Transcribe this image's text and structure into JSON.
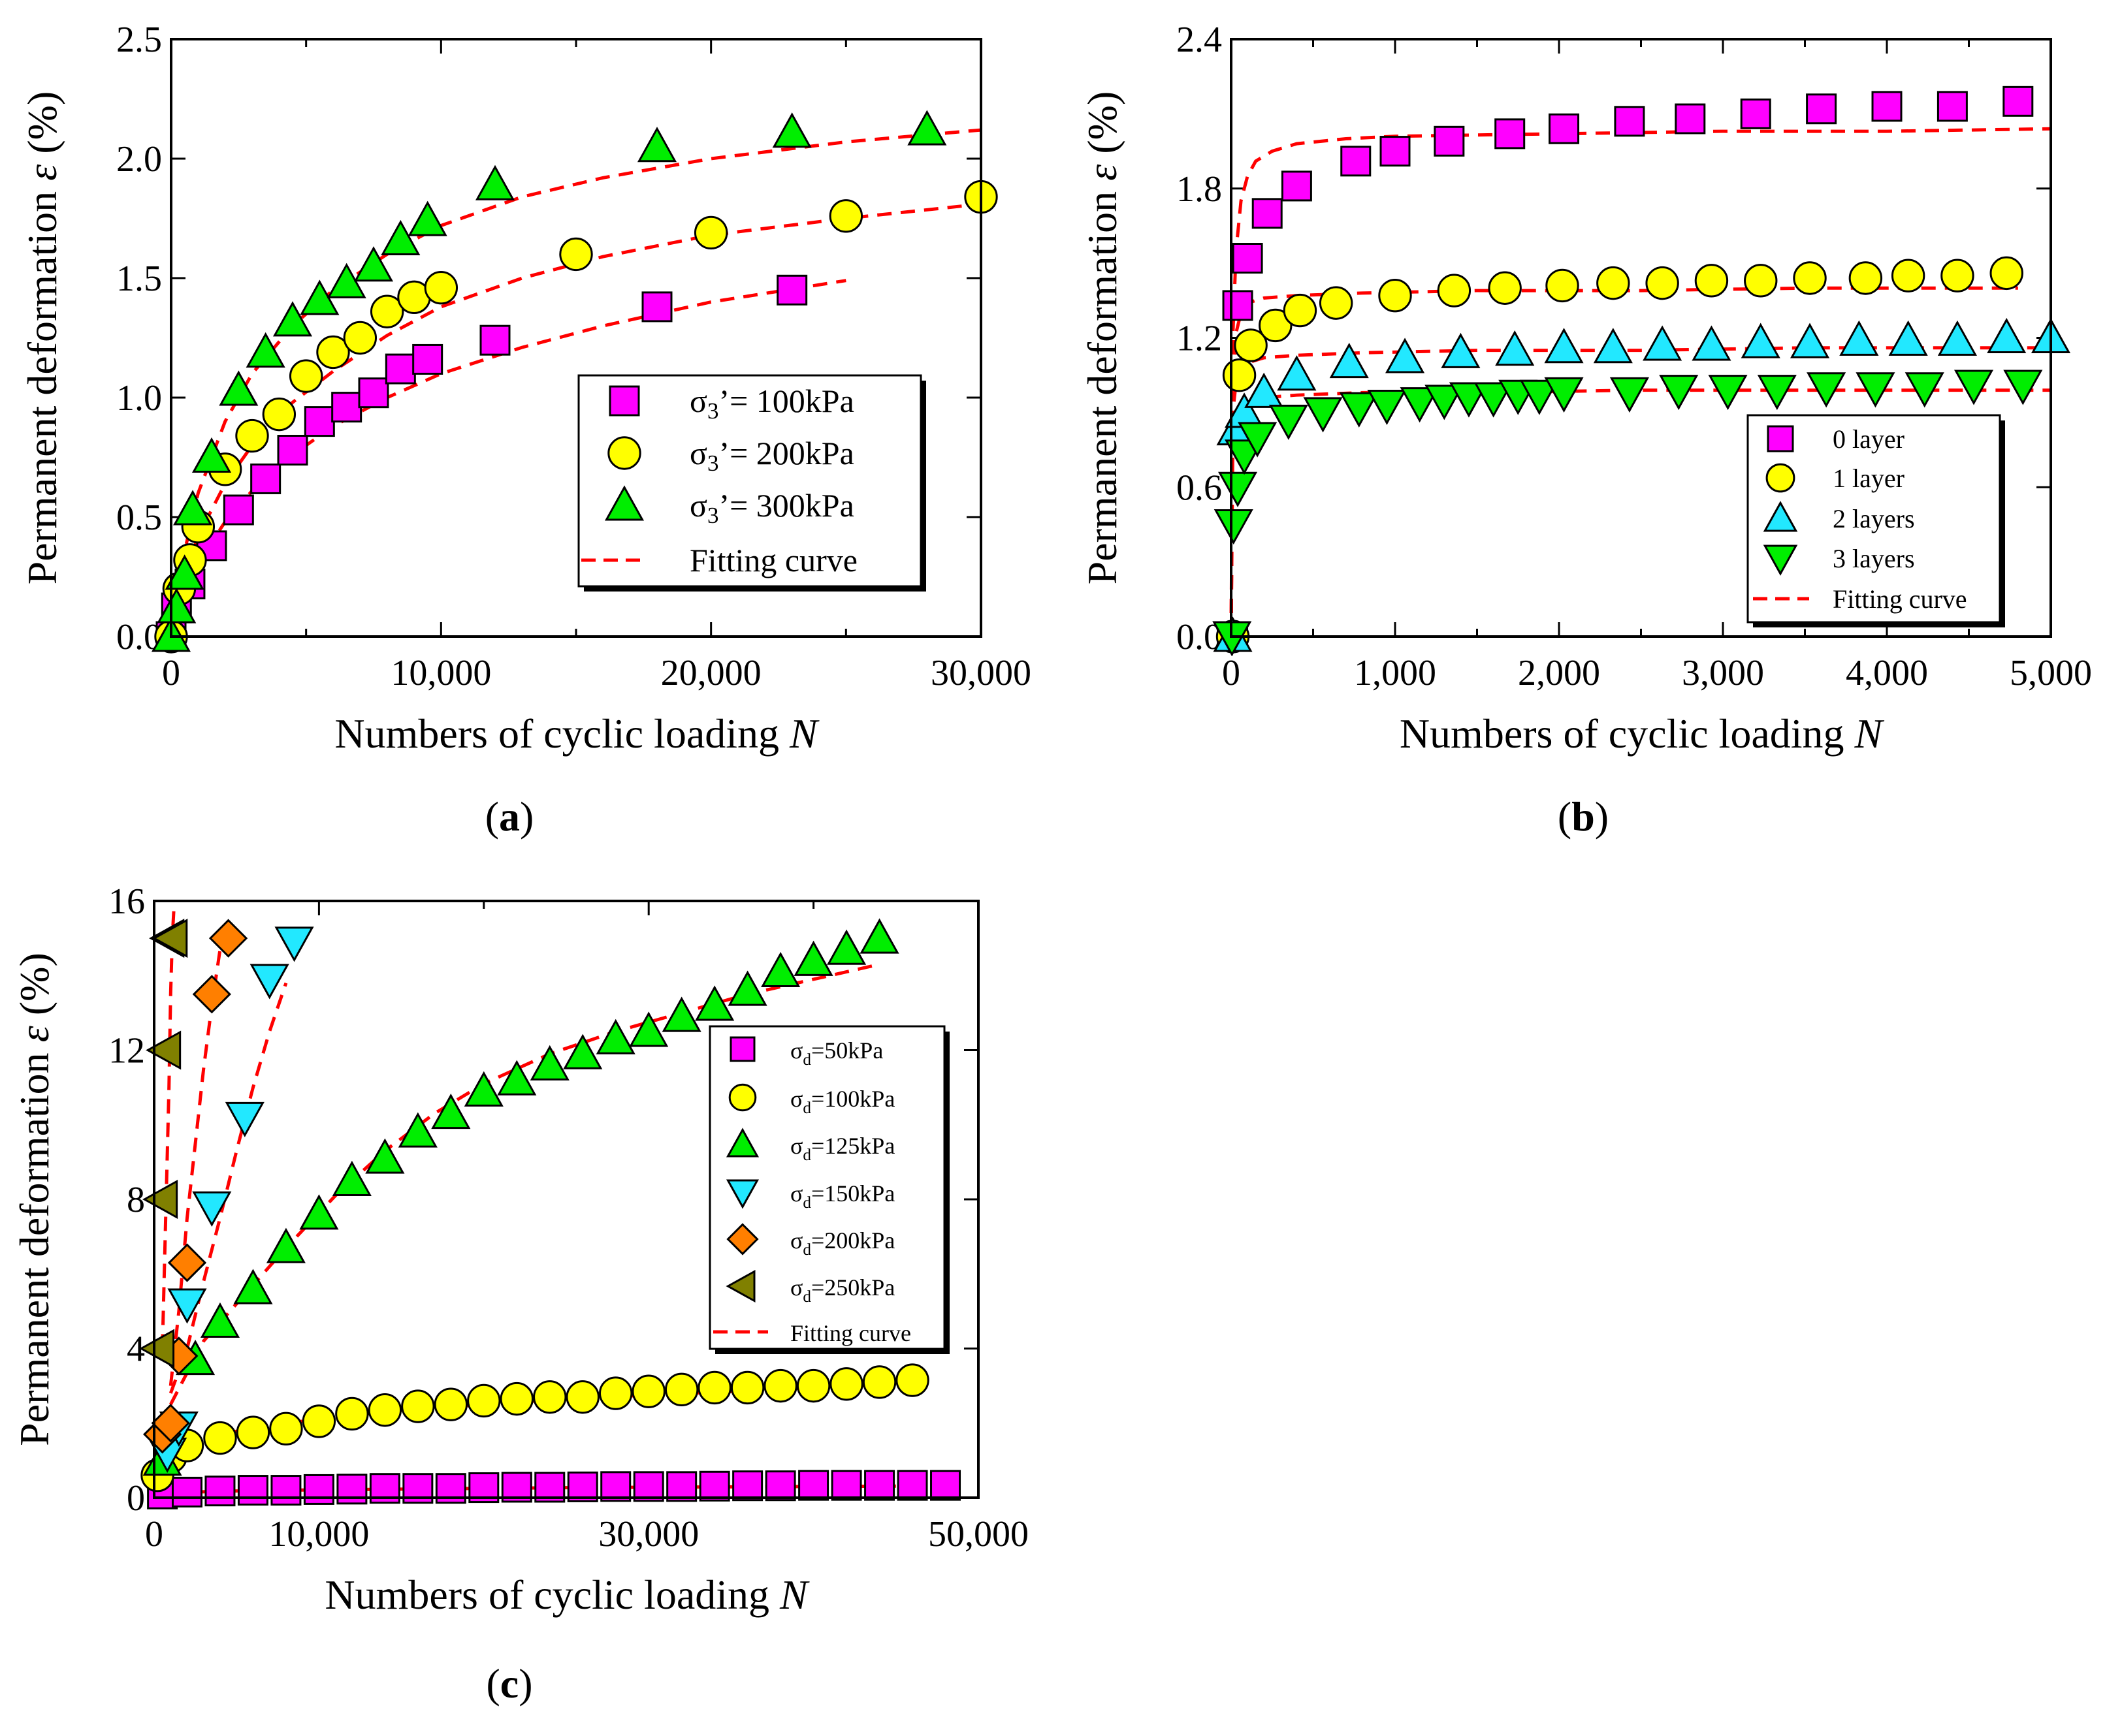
{
  "colors": {
    "magenta": "#ff00ff",
    "yellow": "#ffff00",
    "green": "#00ee00",
    "cyan": "#22e8ff",
    "orange": "#ff7f00",
    "olive": "#808000",
    "fit": "#ff0000"
  },
  "panels": [
    {
      "label": "a",
      "xlabel": "Numbers of cyclic loading",
      "xlabel_italic": "N",
      "ylabel": "Permanent deformation",
      "ylabel_italic": "ε",
      "ylabel_unit": "(%)",
      "xticks": [
        "0",
        "10,000",
        "20,000",
        "30,000"
      ],
      "yticks": [
        "0.0",
        "0.5",
        "1.0",
        "1.5",
        "2.0",
        "2.5"
      ]
    },
    {
      "label": "b",
      "xlabel": "Numbers of cyclic loading",
      "xlabel_italic": "N",
      "ylabel": "Permanent deformation",
      "ylabel_italic": "ε",
      "ylabel_unit": "(%)",
      "xticks": [
        "0",
        "1,000",
        "2,000",
        "3,000",
        "4,000",
        "5,000"
      ],
      "yticks": [
        "0.0",
        "0.6",
        "1.2",
        "1.8",
        "2.4"
      ]
    },
    {
      "label": "c",
      "xlabel": "Numbers of cyclic loading",
      "xlabel_italic": "N",
      "ylabel": "Permanent deformation",
      "ylabel_italic": "ε",
      "ylabel_unit": "(%)",
      "xticks": [
        "0",
        "10,000",
        "30,000",
        "50,000"
      ],
      "yticks": [
        "0",
        "4",
        "8",
        "12",
        "16"
      ]
    }
  ],
  "chart_data": [
    {
      "type": "scatter",
      "panel": "a",
      "xlim": [
        0,
        30000
      ],
      "ylim": [
        0,
        2.5
      ],
      "xlabel": "Numbers of cyclic loading N",
      "ylabel": "Permanent deformation ε (%)",
      "legend_position": "lower-right",
      "series": [
        {
          "name": "σ3’= 100kPa",
          "marker": "square",
          "color": "#ff00ff",
          "x": [
            0,
            200,
            700,
            1500,
            2500,
            3500,
            4500,
            5500,
            6500,
            7500,
            8500,
            9500,
            12000,
            18000,
            23000
          ],
          "y": [
            0.0,
            0.12,
            0.22,
            0.38,
            0.53,
            0.66,
            0.78,
            0.9,
            0.96,
            1.02,
            1.12,
            1.16,
            1.24,
            1.38,
            1.45
          ]
        },
        {
          "name": "σ3’= 200kPa",
          "marker": "circle",
          "color": "#ffff00",
          "x": [
            0,
            300,
            700,
            1000,
            2000,
            3000,
            4000,
            5000,
            6000,
            7000,
            8000,
            9000,
            10000,
            15000,
            20000,
            25000,
            30000
          ],
          "y": [
            0.0,
            0.2,
            0.32,
            0.46,
            0.7,
            0.84,
            0.93,
            1.09,
            1.19,
            1.25,
            1.36,
            1.42,
            1.46,
            1.6,
            1.69,
            1.76,
            1.84
          ]
        },
        {
          "name": "σ3’= 300kPa",
          "marker": "triangle-up",
          "color": "#00ee00",
          "x": [
            0,
            200,
            500,
            800,
            1500,
            2500,
            3500,
            4500,
            5500,
            6500,
            7500,
            8500,
            9500,
            12000,
            18000,
            23000,
            28000
          ],
          "y": [
            0.0,
            0.12,
            0.26,
            0.53,
            0.75,
            1.03,
            1.19,
            1.32,
            1.41,
            1.48,
            1.55,
            1.66,
            1.74,
            1.89,
            2.05,
            2.11,
            2.12
          ]
        },
        {
          "name": "Fitting curve",
          "style": "dashed",
          "color": "#ff0000",
          "x": [
            0,
            300,
            1000,
            2000,
            3000,
            4500,
            6000,
            8000,
            10000,
            13000,
            16000,
            20000,
            25000
          ],
          "y": [
            0.0,
            0.14,
            0.31,
            0.48,
            0.61,
            0.76,
            0.88,
            1.0,
            1.1,
            1.21,
            1.3,
            1.4,
            1.49
          ]
        },
        {
          "name": "",
          "style": "dashed",
          "color": "#ff0000",
          "x": [
            0,
            300,
            1000,
            2000,
            3000,
            4500,
            6000,
            8000,
            10000,
            13000,
            16000,
            20000,
            25000,
            30000
          ],
          "y": [
            0.0,
            0.18,
            0.42,
            0.64,
            0.8,
            0.98,
            1.11,
            1.26,
            1.38,
            1.5,
            1.59,
            1.68,
            1.75,
            1.81
          ]
        },
        {
          "name": "",
          "style": "dashed",
          "color": "#ff0000",
          "x": [
            0,
            300,
            1000,
            2000,
            3000,
            4500,
            6000,
            8000,
            10000,
            13000,
            16000,
            20000,
            25000,
            30000
          ],
          "y": [
            0.0,
            0.26,
            0.6,
            0.9,
            1.1,
            1.3,
            1.45,
            1.6,
            1.72,
            1.84,
            1.92,
            2.0,
            2.07,
            2.12
          ]
        }
      ]
    },
    {
      "type": "scatter",
      "panel": "b",
      "xlim": [
        0,
        5000
      ],
      "ylim": [
        0,
        2.4
      ],
      "xlabel": "Numbers of cyclic loading N",
      "ylabel": "Permanent deformation ε (%)",
      "legend_position": "lower-right",
      "series": [
        {
          "name": "0 layer",
          "marker": "square",
          "color": "#ff00ff",
          "x": [
            10,
            40,
            100,
            220,
            400,
            760,
            1000,
            1330,
            1700,
            2030,
            2430,
            2800,
            3200,
            3600,
            4000,
            4400,
            4800
          ],
          "y": [
            0.0,
            1.33,
            1.52,
            1.7,
            1.81,
            1.91,
            1.95,
            1.99,
            2.02,
            2.04,
            2.07,
            2.08,
            2.1,
            2.12,
            2.13,
            2.13,
            2.15
          ]
        },
        {
          "name": "1 layer",
          "marker": "circle",
          "color": "#ffff00",
          "x": [
            10,
            50,
            120,
            270,
            420,
            640,
            1000,
            1360,
            1670,
            2020,
            2330,
            2630,
            2930,
            3230,
            3530,
            3870,
            4130,
            4430,
            4730
          ],
          "y": [
            0.0,
            1.05,
            1.17,
            1.25,
            1.31,
            1.34,
            1.37,
            1.39,
            1.4,
            1.41,
            1.42,
            1.42,
            1.43,
            1.43,
            1.44,
            1.44,
            1.45,
            1.45,
            1.46
          ]
        },
        {
          "name": "2 layers",
          "marker": "triangle-up",
          "color": "#22e8ff",
          "x": [
            10,
            30,
            80,
            200,
            400,
            720,
            1060,
            1400,
            1730,
            2030,
            2330,
            2630,
            2930,
            3230,
            3530,
            3830,
            4130,
            4430,
            4730,
            5000
          ],
          "y": [
            0.0,
            0.83,
            0.9,
            0.98,
            1.05,
            1.1,
            1.12,
            1.14,
            1.15,
            1.16,
            1.16,
            1.17,
            1.17,
            1.18,
            1.18,
            1.19,
            1.19,
            1.19,
            1.2,
            1.2
          ]
        },
        {
          "name": "3 layers",
          "marker": "triangle-down",
          "color": "#00ee00",
          "x": [
            5,
            15,
            40,
            80,
            160,
            350,
            560,
            780,
            950,
            1150,
            1300,
            1450,
            1600,
            1750,
            1880,
            2030,
            2430,
            2730,
            3030,
            3330,
            3630,
            3930,
            4230,
            4530,
            4830
          ],
          "y": [
            0.0,
            0.45,
            0.6,
            0.73,
            0.8,
            0.87,
            0.9,
            0.92,
            0.93,
            0.94,
            0.95,
            0.96,
            0.96,
            0.97,
            0.97,
            0.98,
            0.98,
            0.99,
            0.99,
            0.99,
            1.0,
            1.0,
            1.0,
            1.01,
            1.01
          ]
        },
        {
          "name": "Fitting curve",
          "style": "dashed",
          "color": "#ff0000",
          "x": [
            0,
            10,
            30,
            60,
            100,
            150,
            250,
            400,
            700,
            1000,
            2000,
            3000,
            4000,
            5000
          ],
          "y": [
            0.0,
            1.2,
            1.55,
            1.75,
            1.85,
            1.91,
            1.95,
            1.98,
            2.0,
            2.01,
            2.02,
            2.03,
            2.03,
            2.04
          ]
        },
        {
          "name": "",
          "style": "dashed",
          "color": "#ff0000",
          "x": [
            0,
            10,
            30,
            60,
            100,
            200,
            400,
            800,
            1500,
            2500,
            3500,
            4800
          ],
          "y": [
            0.0,
            1.0,
            1.22,
            1.3,
            1.34,
            1.36,
            1.37,
            1.38,
            1.39,
            1.39,
            1.4,
            1.4
          ]
        },
        {
          "name": "",
          "style": "dashed",
          "color": "#ff0000",
          "x": [
            0,
            10,
            30,
            60,
            100,
            200,
            400,
            800,
            1500,
            2500,
            3500,
            5000
          ],
          "y": [
            0.0,
            0.9,
            1.02,
            1.07,
            1.1,
            1.12,
            1.13,
            1.14,
            1.15,
            1.15,
            1.16,
            1.16
          ]
        },
        {
          "name": "",
          "style": "dashed",
          "color": "#ff0000",
          "x": [
            0,
            10,
            30,
            60,
            100,
            200,
            400,
            800,
            1500,
            2500,
            3500,
            5000
          ],
          "y": [
            0.0,
            0.75,
            0.88,
            0.92,
            0.94,
            0.96,
            0.97,
            0.98,
            0.98,
            0.99,
            0.99,
            0.99
          ]
        }
      ]
    },
    {
      "type": "scatter",
      "panel": "c",
      "xlim": [
        0,
        50000
      ],
      "ylim": [
        0,
        16
      ],
      "xlabel": "Numbers of cyclic loading N",
      "ylabel": "Permanent deformation ε (%)",
      "legend_position": "right",
      "series": [
        {
          "name": "σd=50kPa",
          "marker": "square",
          "color": "#ff00ff",
          "x": [
            500,
            2000,
            4000,
            6000,
            8000,
            10000,
            12000,
            14000,
            16000,
            18000,
            20000,
            22000,
            24000,
            26000,
            28000,
            30000,
            32000,
            34000,
            36000,
            38000,
            40000,
            42000,
            44000,
            46000,
            48000
          ],
          "y": [
            0.1,
            0.15,
            0.18,
            0.2,
            0.2,
            0.22,
            0.23,
            0.25,
            0.25,
            0.25,
            0.27,
            0.28,
            0.28,
            0.29,
            0.3,
            0.3,
            0.3,
            0.31,
            0.32,
            0.32,
            0.33,
            0.33,
            0.33,
            0.33,
            0.33
          ]
        },
        {
          "name": "σd=100kPa",
          "marker": "circle",
          "color": "#ffff00",
          "x": [
            200,
            1000,
            2000,
            4000,
            6000,
            8000,
            10000,
            12000,
            14000,
            16000,
            18000,
            20000,
            22000,
            24000,
            26000,
            28000,
            30000,
            32000,
            34000,
            36000,
            38000,
            40000,
            42000,
            44000,
            46000
          ],
          "y": [
            0.6,
            1.1,
            1.4,
            1.6,
            1.75,
            1.85,
            2.05,
            2.25,
            2.35,
            2.45,
            2.5,
            2.6,
            2.65,
            2.7,
            2.7,
            2.8,
            2.85,
            2.9,
            2.95,
            2.95,
            3.0,
            3.0,
            3.05,
            3.1,
            3.15
          ]
        },
        {
          "name": "σd=125kPa",
          "marker": "triangle-up",
          "color": "#00ee00",
          "x": [
            500,
            2500,
            4000,
            6000,
            8000,
            10000,
            12000,
            14000,
            16000,
            18000,
            20000,
            22000,
            24000,
            26000,
            28000,
            30000,
            32000,
            34000,
            36000,
            38000,
            40000,
            42000,
            44000
          ],
          "y": [
            1.0,
            3.7,
            4.7,
            5.6,
            6.7,
            7.6,
            8.5,
            9.1,
            9.8,
            10.3,
            10.9,
            11.2,
            11.6,
            11.9,
            12.3,
            12.5,
            12.9,
            13.2,
            13.6,
            14.1,
            14.4,
            14.7,
            15.0
          ]
        },
        {
          "name": "σd=150kPa",
          "marker": "triangle-down",
          "color": "#22e8ff",
          "x": [
            800,
            1500,
            2000,
            3500,
            5500,
            7000,
            8500
          ],
          "y": [
            1.2,
            1.9,
            5.2,
            7.8,
            10.2,
            13.9,
            14.9
          ]
        },
        {
          "name": "σd=200kPa",
          "marker": "diamond",
          "color": "#ff7f00",
          "x": [
            500,
            1000,
            1500,
            2000,
            3500,
            4500
          ],
          "y": [
            1.7,
            2.0,
            3.8,
            6.3,
            13.5,
            15.0
          ]
        },
        {
          "name": "σd=250kPa",
          "marker": "triangle-left",
          "color": "#808000",
          "x": [
            300,
            500,
            700,
            900,
            1100
          ],
          "y": [
            4.0,
            8.0,
            12.0,
            15.0,
            15.0
          ]
        },
        {
          "name": "Fitting curve",
          "style": "dashed",
          "color": "#ff0000",
          "x": [
            0,
            2000,
            6000,
            10000,
            15000,
            20000,
            25000,
            30000,
            35000,
            40000,
            45000
          ],
          "y": [
            0.05,
            0.15,
            0.19,
            0.21,
            0.23,
            0.25,
            0.27,
            0.28,
            0.29,
            0.3,
            0.31
          ]
        },
        {
          "name": "",
          "style": "dashed",
          "color": "#ff0000",
          "x": [
            0,
            500,
            1000,
            2000,
            4000,
            7000,
            10000,
            15000,
            20000,
            25000,
            30000,
            35000,
            40000,
            45000
          ],
          "y": [
            0.4,
            0.9,
            1.15,
            1.4,
            1.7,
            1.95,
            2.1,
            2.35,
            2.5,
            2.65,
            2.75,
            2.85,
            2.95,
            3.05
          ]
        },
        {
          "name": "",
          "style": "dashed",
          "color": "#ff0000",
          "x": [
            1000,
            3000,
            5000,
            8000,
            11000,
            14000,
            17000,
            20000,
            24000,
            28000,
            32000,
            36000,
            40000,
            44000
          ],
          "y": [
            2.5,
            4.2,
            5.2,
            6.7,
            8.1,
            9.3,
            10.3,
            11.1,
            11.9,
            12.5,
            13.0,
            13.5,
            13.9,
            14.3
          ]
        },
        {
          "name": "",
          "style": "dashed",
          "color": "#ff0000",
          "x": [
            1000,
            2000,
            3000,
            4000,
            5000,
            6000,
            7000,
            8000
          ],
          "y": [
            2.8,
            4.0,
            5.8,
            7.5,
            9.3,
            11.0,
            12.5,
            13.8
          ]
        },
        {
          "name": "",
          "style": "dashed",
          "color": "#ff0000",
          "x": [
            1000,
            1500,
            2000,
            2500,
            3000,
            3500,
            4000
          ],
          "y": [
            3.0,
            5.0,
            7.5,
            9.5,
            11.5,
            13.2,
            14.7
          ]
        },
        {
          "name": "",
          "style": "dashed",
          "color": "#ff0000",
          "x": [
            500,
            700,
            900,
            1000,
            1100,
            1200
          ],
          "y": [
            4.0,
            7.5,
            11.0,
            13.5,
            15.0,
            15.8
          ]
        }
      ]
    }
  ]
}
